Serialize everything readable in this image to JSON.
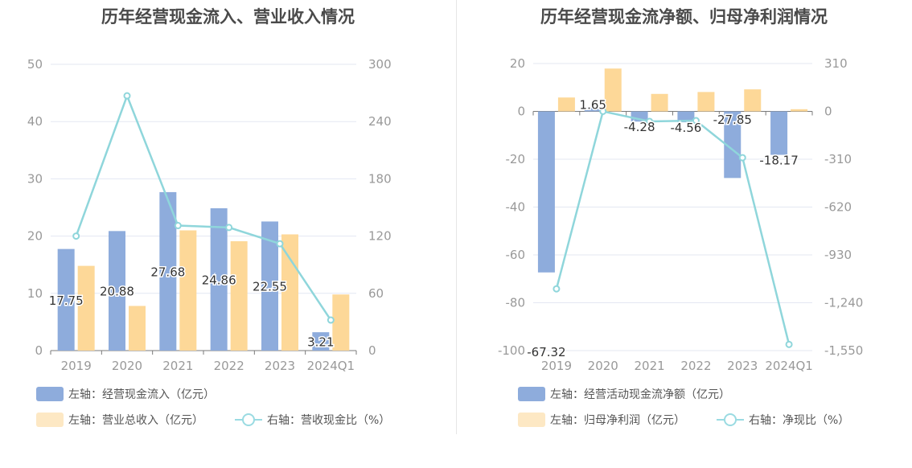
{
  "colors": {
    "bar1": "#8eacdc",
    "bar2": "#fdd898",
    "line": "#8fd6db",
    "grid": "#e3e7f2",
    "axis": "#999999",
    "label": "#333333"
  },
  "chart_data": [
    {
      "type": "bar",
      "title": "历年经营现金流入、营业收入情况",
      "categories": [
        "2019",
        "2020",
        "2021",
        "2022",
        "2023",
        "2024Q1"
      ],
      "left_axis": {
        "ylim": [
          0,
          50
        ],
        "ticks": [
          "0",
          "10",
          "20",
          "30",
          "40",
          "50"
        ]
      },
      "right_axis": {
        "ylim": [
          0,
          300
        ],
        "ticks": [
          "0",
          "60",
          "120",
          "180",
          "240",
          "300"
        ]
      },
      "series": [
        {
          "name": "左轴：经营现金流入（亿元）",
          "kind": "bar",
          "axis": "left",
          "values": [
            17.75,
            20.88,
            27.68,
            24.86,
            22.55,
            3.21
          ],
          "labels": [
            "17.75",
            "20.88",
            "27.68",
            "24.86",
            "22.55",
            "3.21"
          ]
        },
        {
          "name": "左轴：营业总收入（亿元）",
          "kind": "bar",
          "axis": "left",
          "values": [
            14.8,
            7.8,
            21.0,
            19.1,
            20.3,
            9.8
          ]
        },
        {
          "name": "右轴：营收现金比（%）",
          "kind": "line",
          "axis": "right",
          "values": [
            120,
            267,
            131,
            129,
            112,
            32
          ]
        }
      ],
      "legend_placement": "bottom-left",
      "grid": true
    },
    {
      "type": "bar",
      "title": "历年经营现金流净额、归母净利润情况",
      "categories": [
        "2019",
        "2020",
        "2021",
        "2022",
        "2023",
        "2024Q1"
      ],
      "left_axis": {
        "ylim": [
          -100,
          20
        ],
        "ticks": [
          "-100",
          "-80",
          "-60",
          "-40",
          "-20",
          "0",
          "20"
        ]
      },
      "right_axis": {
        "ylim": [
          -1550,
          310
        ],
        "ticks": [
          "-1,550",
          "-1,240",
          "-930",
          "-620",
          "-310",
          "0",
          "310"
        ]
      },
      "series": [
        {
          "name": "左轴：经营活动现金流净额（亿元）",
          "kind": "bar",
          "axis": "left",
          "values": [
            -67.32,
            1.65,
            -4.28,
            -4.56,
            -27.85,
            -18.17
          ],
          "labels": [
            "-67.32",
            "1.65",
            "-4.28",
            "-4.56",
            "-27.85",
            "-18.17"
          ]
        },
        {
          "name": "左轴：归母净利润（亿元）",
          "kind": "bar",
          "axis": "left",
          "values": [
            5.8,
            17.9,
            7.3,
            8.1,
            9.2,
            0.9
          ]
        },
        {
          "name": "右轴：净现比（%）",
          "kind": "line",
          "axis": "right",
          "values": [
            -1150,
            0,
            -65,
            -60,
            -300,
            -1510
          ]
        }
      ],
      "legend_placement": "bottom-left",
      "grid": true
    }
  ]
}
